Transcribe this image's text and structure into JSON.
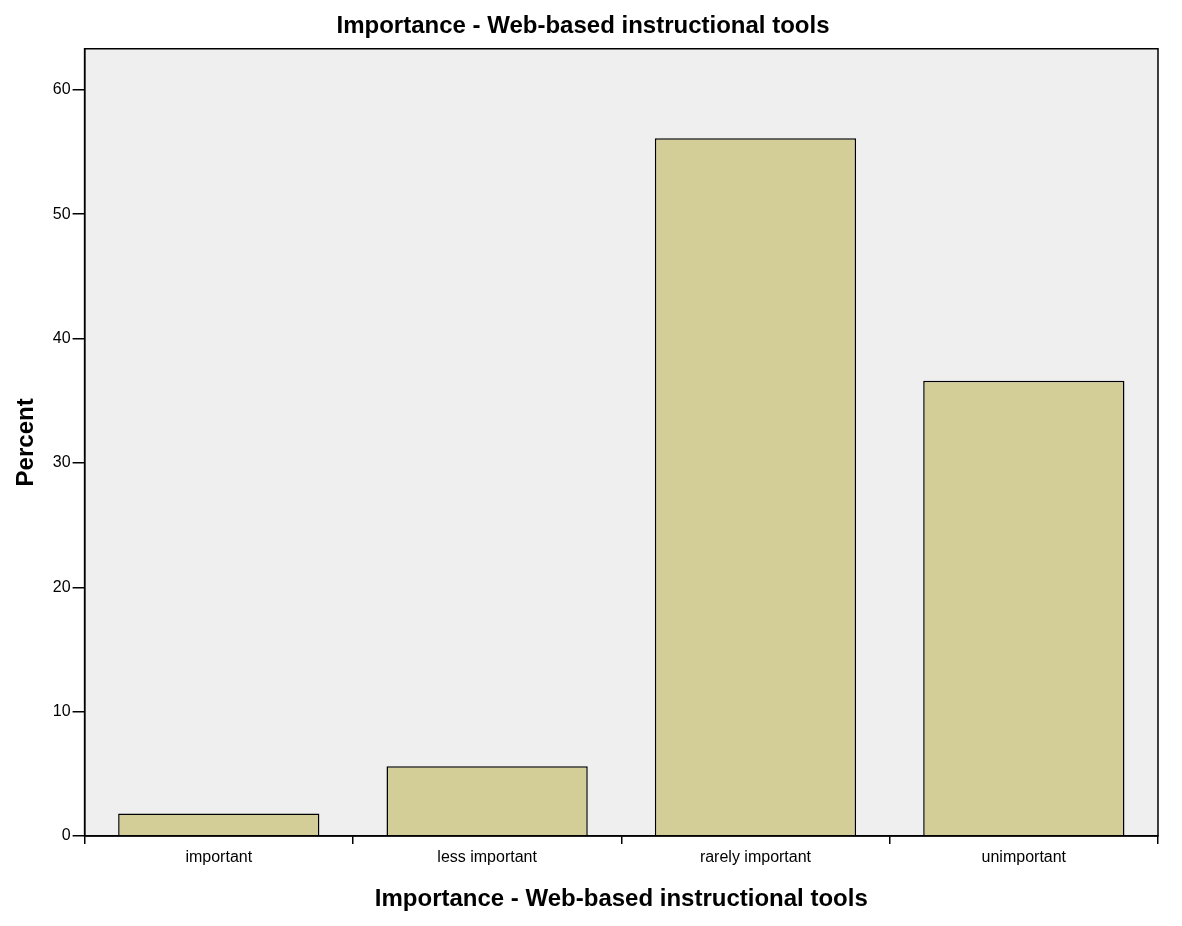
{
  "chart_data": {
    "type": "bar",
    "title": "Importance - Web-based instructional tools",
    "xlabel": "Importance - Web-based instructional tools",
    "ylabel": "Percent",
    "categories": [
      "important",
      "less important",
      "rarely important",
      "unimportant"
    ],
    "values": [
      1.8,
      5.6,
      56.1,
      36.6
    ],
    "color": "#d3cd98",
    "ylim": [
      0,
      63.3
    ],
    "yticks": [
      0,
      10,
      20,
      30,
      40,
      50,
      60
    ],
    "grid": false,
    "legend": false
  }
}
